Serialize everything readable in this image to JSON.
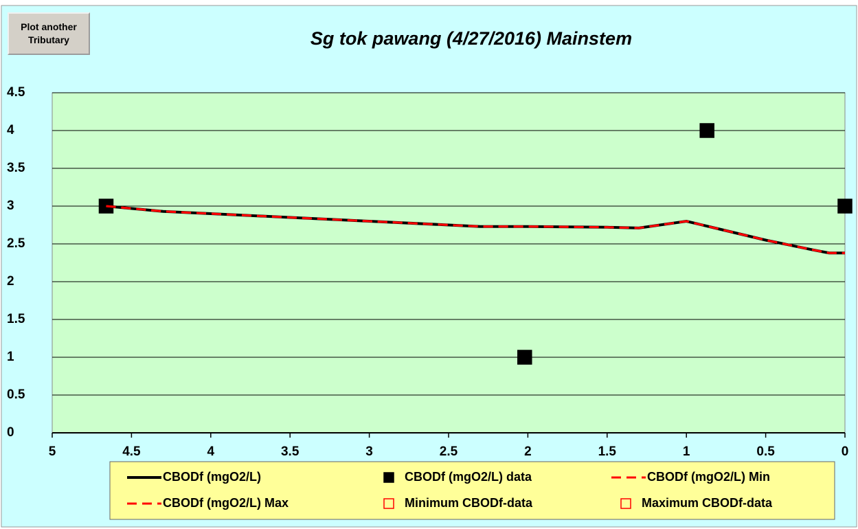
{
  "button": {
    "label": [
      "Plot another",
      "Tributary"
    ]
  },
  "chart_data": {
    "type": "line",
    "title": "Sg tok pawang (4/27/2016) Mainstem",
    "xlim": [
      5,
      0
    ],
    "ylim": [
      0,
      4.5
    ],
    "xticks": [
      5,
      4.5,
      4,
      3.5,
      3,
      2.5,
      2,
      1.5,
      1,
      0.5,
      0
    ],
    "yticks": [
      0,
      0.5,
      1,
      1.5,
      2,
      2.5,
      3,
      3.5,
      4,
      4.5
    ],
    "grid": true,
    "legend": "bottom",
    "series": [
      {
        "name": "CBODf (mgO2/L)",
        "color": "#000000",
        "style": "solid",
        "x": [
          4.66,
          4.3,
          4,
          3.5,
          3,
          2.5,
          2.3,
          2,
          1.5,
          1.3,
          1,
          0.8,
          0.5,
          0.2,
          0.1,
          0
        ],
        "values": [
          3.0,
          2.93,
          2.9,
          2.85,
          2.8,
          2.75,
          2.73,
          2.73,
          2.72,
          2.71,
          2.8,
          2.7,
          2.55,
          2.42,
          2.38,
          2.38
        ]
      },
      {
        "name": "CBODf (mgO2/L) data",
        "color": "#000000",
        "marker": "filled-square",
        "x": [
          4.66,
          2.02,
          0.87,
          0
        ],
        "values": [
          3,
          1,
          4,
          3
        ]
      },
      {
        "name": "CBODf (mgO2/L) Min",
        "color": "#ff0000",
        "style": "dashed",
        "x": [
          4.66,
          4.3,
          4,
          3.5,
          3,
          2.5,
          2.3,
          2,
          1.5,
          1.3,
          1,
          0.8,
          0.5,
          0.2,
          0.1,
          0
        ],
        "values": [
          3.0,
          2.93,
          2.9,
          2.85,
          2.8,
          2.75,
          2.73,
          2.73,
          2.72,
          2.71,
          2.8,
          2.7,
          2.55,
          2.42,
          2.38,
          2.38
        ]
      },
      {
        "name": "CBODf (mgO2/L) Max",
        "color": "#ff0000",
        "style": "dashed",
        "x": [
          4.66,
          4.3,
          4,
          3.5,
          3,
          2.5,
          2.3,
          2,
          1.5,
          1.3,
          1,
          0.8,
          0.5,
          0.2,
          0.1,
          0
        ],
        "values": [
          3.0,
          2.93,
          2.9,
          2.85,
          2.8,
          2.75,
          2.73,
          2.73,
          2.72,
          2.71,
          2.8,
          2.7,
          2.55,
          2.42,
          2.38,
          2.38
        ]
      },
      {
        "name": "Minimum CBODf-data",
        "color": "#ff0000",
        "marker": "open-square",
        "x": [],
        "values": []
      },
      {
        "name": "Maximum CBODf-data",
        "color": "#ff0000",
        "marker": "open-square",
        "x": [],
        "values": []
      }
    ]
  }
}
